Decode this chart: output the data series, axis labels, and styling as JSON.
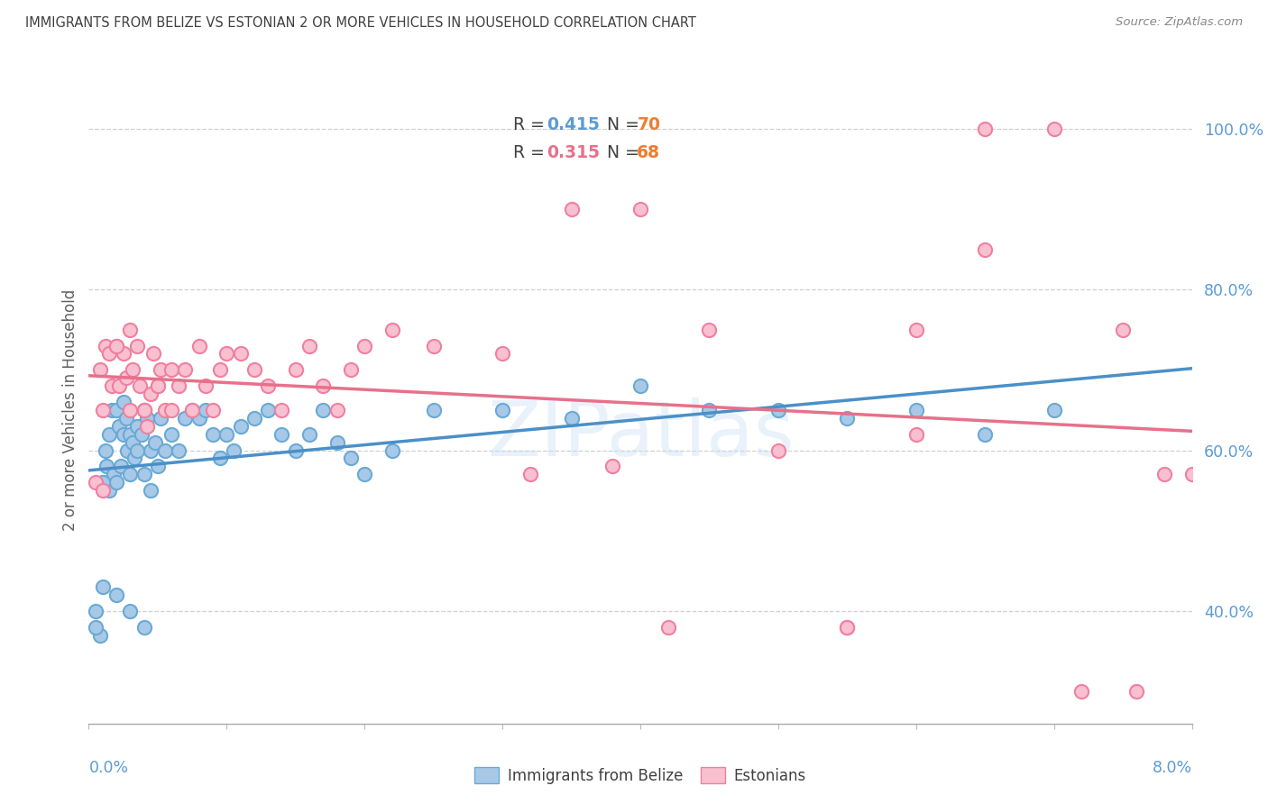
{
  "title": "IMMIGRANTS FROM BELIZE VS ESTONIAN 2 OR MORE VEHICLES IN HOUSEHOLD CORRELATION CHART",
  "source": "Source: ZipAtlas.com",
  "ylabel": "2 or more Vehicles in Household",
  "x_min": 0.0,
  "x_max": 8.0,
  "y_min": 26.0,
  "y_max": 104.0,
  "y_ticks": [
    40.0,
    60.0,
    80.0,
    100.0
  ],
  "y_tick_labels": [
    "40.0%",
    "60.0%",
    "80.0%",
    "100.0%"
  ],
  "series1_label": "Immigrants from Belize",
  "series1_R": "0.415",
  "series1_N": "70",
  "series1_color": "#a8c8e8",
  "series1_edge_color": "#6aaad4",
  "series2_label": "Estonians",
  "series2_R": "0.315",
  "series2_N": "68",
  "series2_color": "#f8c0d0",
  "series2_edge_color": "#f080a0",
  "line1_color": "#4a90c8",
  "line2_color": "#e8708a",
  "background_color": "#ffffff",
  "grid_color": "#d0d0d0",
  "title_color": "#404040",
  "axis_color": "#5b9bd5",
  "legend_R_color": "#5b9bd5",
  "legend_N_color": "#ed7d31",
  "watermark": "ZIPatlas",
  "belize_x": [
    0.05,
    0.08,
    0.1,
    0.1,
    0.12,
    0.13,
    0.15,
    0.15,
    0.17,
    0.18,
    0.2,
    0.2,
    0.22,
    0.23,
    0.25,
    0.25,
    0.27,
    0.28,
    0.3,
    0.3,
    0.32,
    0.33,
    0.35,
    0.35,
    0.38,
    0.4,
    0.4,
    0.42,
    0.45,
    0.45,
    0.48,
    0.5,
    0.52,
    0.55,
    0.6,
    0.65,
    0.7,
    0.75,
    0.8,
    0.85,
    0.9,
    0.95,
    1.0,
    1.05,
    1.1,
    1.2,
    1.3,
    1.4,
    1.5,
    1.6,
    1.7,
    1.8,
    1.9,
    2.0,
    2.2,
    2.5,
    3.0,
    3.5,
    4.0,
    4.5,
    5.0,
    5.5,
    6.0,
    6.5,
    7.0,
    0.05,
    0.1,
    0.2,
    0.3,
    0.4
  ],
  "belize_y": [
    40,
    37,
    56,
    43,
    60,
    58,
    62,
    55,
    65,
    57,
    65,
    56,
    63,
    58,
    66,
    62,
    64,
    60,
    62,
    57,
    61,
    59,
    63,
    60,
    62,
    65,
    57,
    64,
    60,
    55,
    61,
    58,
    64,
    60,
    62,
    60,
    64,
    65,
    64,
    65,
    62,
    59,
    62,
    60,
    63,
    64,
    65,
    62,
    60,
    62,
    65,
    61,
    59,
    57,
    60,
    65,
    65,
    64,
    68,
    65,
    65,
    64,
    65,
    62,
    65,
    38,
    56,
    42,
    40,
    38
  ],
  "estonian_x": [
    0.05,
    0.08,
    0.1,
    0.12,
    0.15,
    0.17,
    0.2,
    0.22,
    0.25,
    0.27,
    0.3,
    0.32,
    0.35,
    0.37,
    0.4,
    0.42,
    0.45,
    0.47,
    0.5,
    0.52,
    0.55,
    0.6,
    0.65,
    0.7,
    0.75,
    0.8,
    0.85,
    0.9,
    0.95,
    1.0,
    1.1,
    1.2,
    1.3,
    1.4,
    1.5,
    1.6,
    1.7,
    1.8,
    1.9,
    2.0,
    2.2,
    2.5,
    3.0,
    3.5,
    4.0,
    4.5,
    5.0,
    5.5,
    6.0,
    6.5,
    6.5,
    7.0,
    7.5,
    7.8,
    0.1,
    0.2,
    0.3,
    0.4,
    0.5,
    0.6,
    4.2,
    5.5,
    6.0,
    3.2,
    3.8,
    7.2,
    7.6,
    8.0
  ],
  "estonian_y": [
    56,
    70,
    65,
    73,
    72,
    68,
    73,
    68,
    72,
    69,
    65,
    70,
    73,
    68,
    65,
    63,
    67,
    72,
    68,
    70,
    65,
    70,
    68,
    70,
    65,
    73,
    68,
    65,
    70,
    72,
    72,
    70,
    68,
    65,
    70,
    73,
    68,
    65,
    70,
    73,
    75,
    73,
    72,
    90,
    90,
    75,
    60,
    38,
    75,
    100,
    85,
    100,
    75,
    57,
    55,
    73,
    75,
    65,
    68,
    65,
    38,
    38,
    62,
    57,
    58,
    30,
    30,
    57
  ]
}
